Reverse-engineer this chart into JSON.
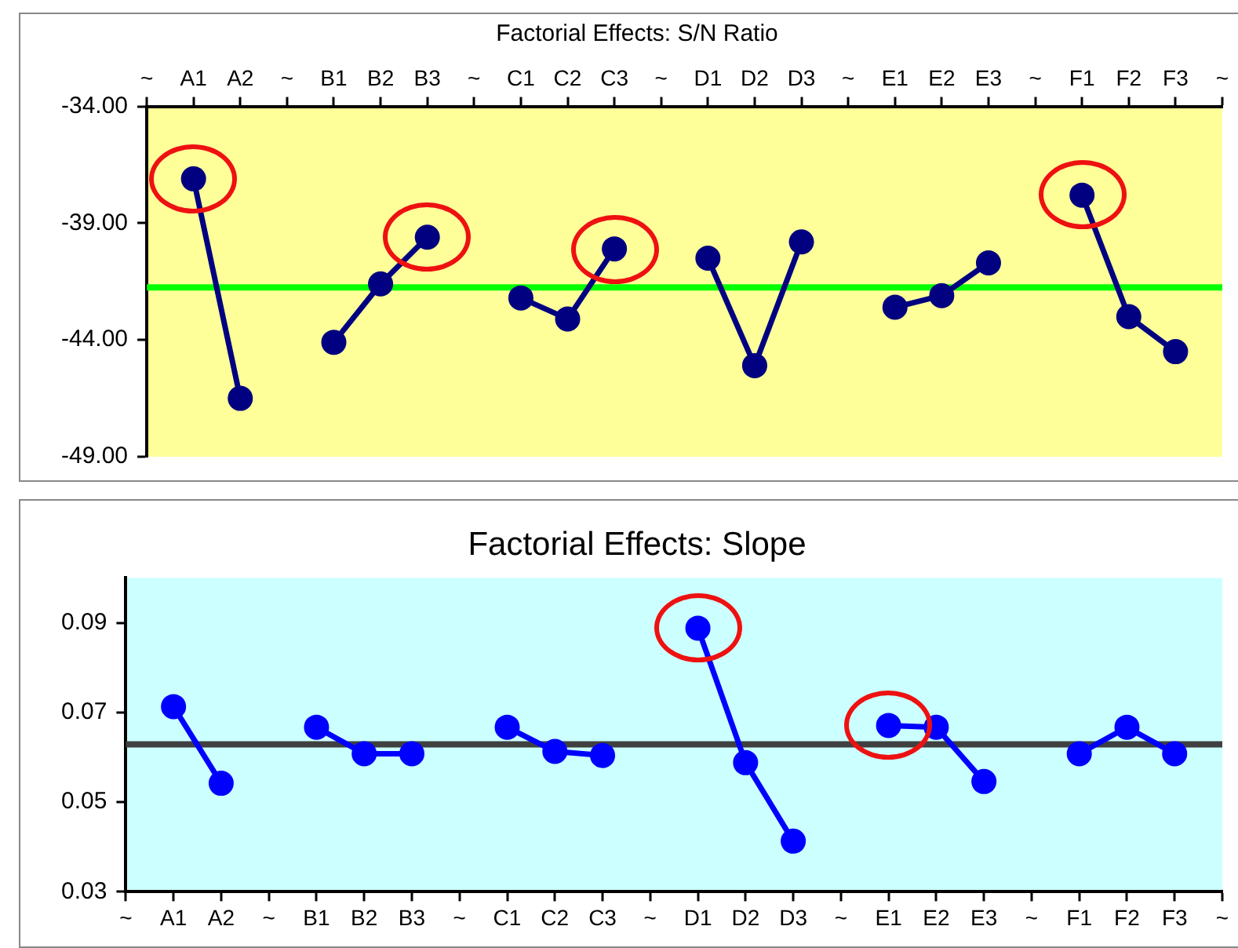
{
  "chart_data": [
    {
      "type": "line",
      "title": "Factorial Effects: S/N Ratio",
      "categories": [
        "~",
        "A1",
        "A2",
        "~",
        "B1",
        "B2",
        "B3",
        "~",
        "C1",
        "C2",
        "C3",
        "~",
        "D1",
        "D2",
        "D3",
        "~",
        "E1",
        "E2",
        "E3",
        "~",
        "F1",
        "F2",
        "F3",
        "~"
      ],
      "series": [
        {
          "color": "#000080",
          "values": [
            null,
            -37.1,
            -46.5,
            null,
            -44.1,
            -41.6,
            -39.6,
            null,
            -42.2,
            -43.1,
            -40.1,
            null,
            -40.5,
            -45.1,
            -39.8,
            null,
            -42.6,
            -42.1,
            -40.7,
            null,
            -37.8,
            -43.0,
            -44.5,
            null
          ]
        }
      ],
      "ylim": [
        -49,
        -34
      ],
      "yticks": [
        {
          "value": -34,
          "label": "-34.00"
        },
        {
          "value": -39,
          "label": "-39.00"
        },
        {
          "value": -44,
          "label": "-44.00"
        },
        {
          "value": -49,
          "label": "-49.00"
        }
      ],
      "ref_lines": [
        {
          "axis": "y",
          "value": -41.75,
          "color": "#00ff00"
        }
      ],
      "grid": false,
      "legend": false,
      "marker": "circle",
      "line_style": "solid"
    },
    {
      "type": "line",
      "title": "Factorial Effects: Slope",
      "categories": [
        "~",
        "A1",
        "A2",
        "~",
        "B1",
        "B2",
        "B3",
        "~",
        "C1",
        "C2",
        "C3",
        "~",
        "D1",
        "D2",
        "D3",
        "~",
        "E1",
        "E2",
        "E3",
        "~",
        "F1",
        "F2",
        "F3",
        "~"
      ],
      "series": [
        {
          "color": "#0000ff",
          "values": [
            null,
            0.0713,
            0.0542,
            null,
            0.0667,
            0.0608,
            0.0608,
            null,
            0.0667,
            0.0613,
            0.0604,
            null,
            0.0888,
            0.0588,
            0.0413,
            null,
            0.0671,
            0.0667,
            0.0546,
            null,
            0.0608,
            0.0667,
            0.0608,
            null
          ]
        }
      ],
      "ylim": [
        0.03,
        0.1
      ],
      "yticks": [
        0.03,
        0.05,
        0.07,
        0.09
      ],
      "ref_lines": [
        {
          "axis": "y",
          "value": 0.0629,
          "color": "#404040"
        }
      ],
      "grid": false,
      "legend": false,
      "marker": "circle",
      "line_style": "solid"
    }
  ]
}
